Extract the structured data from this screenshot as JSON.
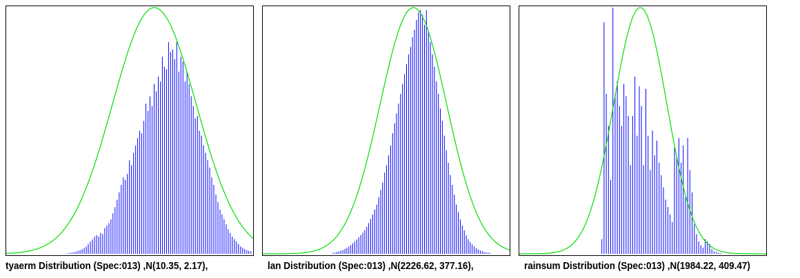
{
  "colors": {
    "bars": "#0000ff",
    "curve": "#00dd00",
    "frame": "#000000"
  },
  "chart_data": [
    {
      "type": "bar",
      "title": "tyaerm Distribution (Spec:013) ,N(10.35, 2.17),",
      "fit": {
        "mean": 10.35,
        "sd": 2.17
      },
      "xlim": [
        0,
        1
      ],
      "ylim": [
        0,
        1.0
      ],
      "grid": false,
      "bars": [
        0.003,
        0.004,
        0.005,
        0.007,
        0.009,
        0.012,
        0.015,
        0.019,
        0.024,
        0.03,
        0.04,
        0.05,
        0.058,
        0.07,
        0.076,
        0.07,
        0.085,
        0.08,
        0.105,
        0.115,
        0.125,
        0.14,
        0.165,
        0.19,
        0.22,
        0.25,
        0.28,
        0.31,
        0.3,
        0.325,
        0.38,
        0.36,
        0.41,
        0.44,
        0.47,
        0.5,
        0.49,
        0.54,
        0.61,
        0.58,
        0.64,
        0.6,
        0.69,
        0.66,
        0.72,
        0.7,
        0.8,
        0.76,
        0.75,
        0.86,
        0.82,
        0.83,
        0.79,
        0.86,
        0.74,
        0.8,
        0.78,
        0.7,
        0.74,
        0.69,
        0.64,
        0.6,
        0.55,
        0.56,
        0.5,
        0.48,
        0.44,
        0.41,
        0.38,
        0.35,
        0.31,
        0.28,
        0.24,
        0.21,
        0.18,
        0.16,
        0.14,
        0.12,
        0.1,
        0.085,
        0.07,
        0.06,
        0.05,
        0.04,
        0.03,
        0.025,
        0.02,
        0.015,
        0.012,
        0.01
      ]
    },
    {
      "type": "bar",
      "title": "lan Distribution (Spec:013) ,N(2226.62, 377.16),",
      "fit": {
        "mean": 2226.62,
        "sd": 377.16
      },
      "xlim": [
        0,
        1
      ],
      "ylim": [
        0,
        1.0
      ],
      "grid": false,
      "bars": [
        0.004,
        0.006,
        0.008,
        0.01,
        0.013,
        0.016,
        0.02,
        0.025,
        0.03,
        0.036,
        0.043,
        0.05,
        0.058,
        0.067,
        0.076,
        0.086,
        0.097,
        0.11,
        0.125,
        0.142,
        0.16,
        0.18,
        0.2,
        0.23,
        0.26,
        0.29,
        0.33,
        0.36,
        0.4,
        0.44,
        0.49,
        0.53,
        0.57,
        0.61,
        0.65,
        0.69,
        0.73,
        0.77,
        0.81,
        0.84,
        0.88,
        0.91,
        0.95,
        0.98,
        0.99,
        0.97,
        0.93,
        0.99,
        0.9,
        0.86,
        0.81,
        0.76,
        0.7,
        0.65,
        0.59,
        0.54,
        0.48,
        0.42,
        0.37,
        0.32,
        0.28,
        0.24,
        0.2,
        0.17,
        0.14,
        0.115,
        0.095,
        0.075,
        0.06,
        0.048,
        0.038,
        0.03,
        0.023,
        0.018,
        0.014,
        0.011,
        0.008,
        0.006,
        0.005,
        0.004
      ]
    },
    {
      "type": "bar",
      "title": "rainsum Distribution (Spec:013) ,N(1984.22, 409.47)",
      "fit": {
        "mean": 1984.22,
        "sd": 409.47
      },
      "xlim": [
        0,
        1
      ],
      "ylim": [
        0,
        1.0
      ],
      "grid": false,
      "bars": [
        0.06,
        0.94,
        0.65,
        0.52,
        0.3,
        1.0,
        0.65,
        0.7,
        0.6,
        0.52,
        0.69,
        0.64,
        0.56,
        0.36,
        0.56,
        0.72,
        0.48,
        0.68,
        0.6,
        0.36,
        0.67,
        0.48,
        0.34,
        0.5,
        0.4,
        0.46,
        0.37,
        0.32,
        0.27,
        0.22,
        0.19,
        0.16,
        0.13,
        0.43,
        0.4,
        0.47,
        0.37,
        0.44,
        0.23,
        0.47,
        0.34,
        0.25,
        0.12,
        0.08,
        0.05,
        0.035,
        0.025,
        0.06,
        0.05,
        0.04,
        0.02,
        0.01,
        0.008,
        0.005,
        0.004
      ]
    }
  ]
}
